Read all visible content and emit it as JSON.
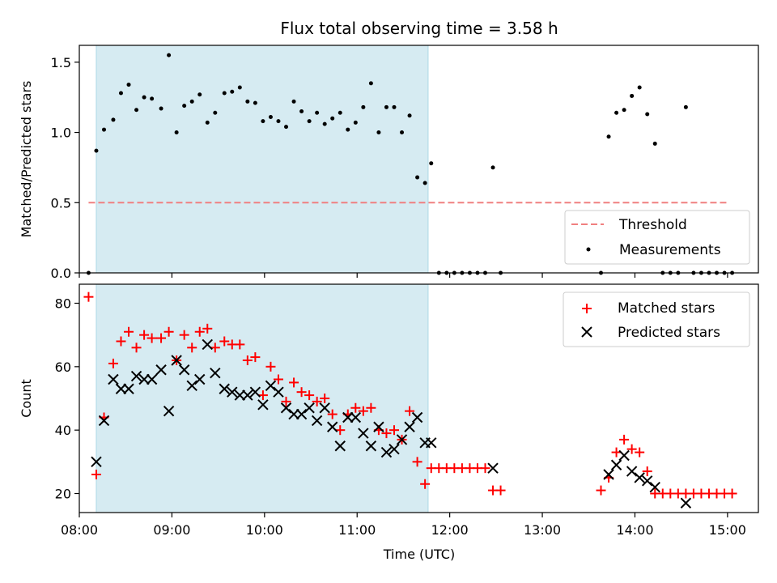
{
  "chart_data": [
    {
      "type": "scatter",
      "title": "Flux total observing time = 3.58 h",
      "xlabel": "",
      "ylabel": "Matched/Predicted stars",
      "xlim": [
        "08:00",
        "15:20"
      ],
      "ylim": [
        0,
        1.62
      ],
      "x_ticks": [
        "08:00",
        "09:00",
        "10:00",
        "11:00",
        "12:00",
        "13:00",
        "14:00",
        "15:00"
      ],
      "y_ticks": [
        "0.0",
        "0.5",
        "1.0",
        "1.5"
      ],
      "shaded_region": {
        "x0": "08:11",
        "x1": "11:46",
        "color": "#add8e6"
      },
      "grid": false,
      "legend_position": "lower-right",
      "threshold": {
        "name": "Threshold",
        "y": 0.5,
        "x0": "08:06",
        "x1": "15:00",
        "color": "#f08080",
        "style": "dashed"
      },
      "series": [
        {
          "name": "Measurements",
          "marker": "dot",
          "color": "#000000",
          "points": [
            [
              "08:06",
              0.0
            ],
            [
              "08:11",
              0.87
            ],
            [
              "08:16",
              1.02
            ],
            [
              "08:22",
              1.09
            ],
            [
              "08:27",
              1.28
            ],
            [
              "08:32",
              1.34
            ],
            [
              "08:37",
              1.16
            ],
            [
              "08:42",
              1.25
            ],
            [
              "08:47",
              1.24
            ],
            [
              "08:53",
              1.17
            ],
            [
              "08:58",
              1.55
            ],
            [
              "09:03",
              1.0
            ],
            [
              "09:08",
              1.19
            ],
            [
              "09:13",
              1.22
            ],
            [
              "09:18",
              1.27
            ],
            [
              "09:23",
              1.07
            ],
            [
              "09:28",
              1.14
            ],
            [
              "09:34",
              1.28
            ],
            [
              "09:39",
              1.29
            ],
            [
              "09:44",
              1.32
            ],
            [
              "09:49",
              1.22
            ],
            [
              "09:54",
              1.21
            ],
            [
              "09:59",
              1.08
            ],
            [
              "10:04",
              1.11
            ],
            [
              "10:09",
              1.08
            ],
            [
              "10:14",
              1.04
            ],
            [
              "10:19",
              1.22
            ],
            [
              "10:24",
              1.15
            ],
            [
              "10:29",
              1.08
            ],
            [
              "10:34",
              1.14
            ],
            [
              "10:39",
              1.06
            ],
            [
              "10:44",
              1.1
            ],
            [
              "10:49",
              1.14
            ],
            [
              "10:54",
              1.02
            ],
            [
              "10:59",
              1.07
            ],
            [
              "11:04",
              1.18
            ],
            [
              "11:09",
              1.35
            ],
            [
              "11:14",
              1.0
            ],
            [
              "11:19",
              1.18
            ],
            [
              "11:24",
              1.18
            ],
            [
              "11:29",
              1.0
            ],
            [
              "11:34",
              1.12
            ],
            [
              "11:39",
              0.68
            ],
            [
              "11:44",
              0.64
            ],
            [
              "11:48",
              0.78
            ],
            [
              "11:53",
              0.0
            ],
            [
              "11:58",
              0.0
            ],
            [
              "12:03",
              0.0
            ],
            [
              "12:08",
              0.0
            ],
            [
              "12:13",
              0.0
            ],
            [
              "12:18",
              0.0
            ],
            [
              "12:23",
              0.0
            ],
            [
              "12:28",
              0.75
            ],
            [
              "12:33",
              0.0
            ],
            [
              "13:38",
              0.0
            ],
            [
              "13:43",
              0.97
            ],
            [
              "13:48",
              1.14
            ],
            [
              "13:53",
              1.16
            ],
            [
              "13:58",
              1.26
            ],
            [
              "14:03",
              1.32
            ],
            [
              "14:08",
              1.13
            ],
            [
              "14:13",
              0.92
            ],
            [
              "14:18",
              0.0
            ],
            [
              "14:23",
              0.0
            ],
            [
              "14:28",
              0.0
            ],
            [
              "14:33",
              1.18
            ],
            [
              "14:38",
              0.0
            ],
            [
              "14:43",
              0.0
            ],
            [
              "14:48",
              0.0
            ],
            [
              "14:53",
              0.0
            ],
            [
              "14:58",
              0.0
            ],
            [
              "15:03",
              0.0
            ]
          ]
        }
      ]
    },
    {
      "type": "scatter",
      "title": "",
      "xlabel": "Time (UTC)",
      "ylabel": "Count",
      "xlim": [
        "08:00",
        "15:20"
      ],
      "ylim": [
        14,
        86
      ],
      "x_ticks": [
        "08:00",
        "09:00",
        "10:00",
        "11:00",
        "12:00",
        "13:00",
        "14:00",
        "15:00"
      ],
      "y_ticks": [
        "20",
        "40",
        "60",
        "80"
      ],
      "shaded_region": {
        "x0": "08:11",
        "x1": "11:46",
        "color": "#add8e6"
      },
      "grid": false,
      "legend_position": "upper-right",
      "series": [
        {
          "name": "Matched stars",
          "marker": "plus",
          "color": "#ff0000",
          "points": [
            [
              "08:06",
              82
            ],
            [
              "08:11",
              26
            ],
            [
              "08:16",
              44
            ],
            [
              "08:22",
              61
            ],
            [
              "08:27",
              68
            ],
            [
              "08:32",
              71
            ],
            [
              "08:37",
              66
            ],
            [
              "08:42",
              70
            ],
            [
              "08:47",
              69
            ],
            [
              "08:53",
              69
            ],
            [
              "08:58",
              71
            ],
            [
              "09:03",
              62
            ],
            [
              "09:08",
              70
            ],
            [
              "09:13",
              66
            ],
            [
              "09:18",
              71
            ],
            [
              "09:23",
              72
            ],
            [
              "09:28",
              66
            ],
            [
              "09:34",
              68
            ],
            [
              "09:39",
              67
            ],
            [
              "09:44",
              67
            ],
            [
              "09:49",
              62
            ],
            [
              "09:54",
              63
            ],
            [
              "09:59",
              51
            ],
            [
              "10:04",
              60
            ],
            [
              "10:09",
              56
            ],
            [
              "10:14",
              49
            ],
            [
              "10:19",
              55
            ],
            [
              "10:24",
              52
            ],
            [
              "10:29",
              51
            ],
            [
              "10:34",
              49
            ],
            [
              "10:39",
              50
            ],
            [
              "10:44",
              45
            ],
            [
              "10:49",
              40
            ],
            [
              "10:54",
              45
            ],
            [
              "10:59",
              47
            ],
            [
              "11:04",
              46
            ],
            [
              "11:09",
              47
            ],
            [
              "11:14",
              40
            ],
            [
              "11:19",
              39
            ],
            [
              "11:24",
              40
            ],
            [
              "11:29",
              37
            ],
            [
              "11:34",
              46
            ],
            [
              "11:39",
              30
            ],
            [
              "11:44",
              23
            ],
            [
              "11:48",
              28
            ],
            [
              "11:53",
              28
            ],
            [
              "11:58",
              28
            ],
            [
              "12:03",
              28
            ],
            [
              "12:08",
              28
            ],
            [
              "12:13",
              28
            ],
            [
              "12:18",
              28
            ],
            [
              "12:23",
              28
            ],
            [
              "12:28",
              21
            ],
            [
              "12:33",
              21
            ],
            [
              "13:38",
              21
            ],
            [
              "13:43",
              25
            ],
            [
              "13:48",
              33
            ],
            [
              "13:53",
              37
            ],
            [
              "13:58",
              34
            ],
            [
              "14:03",
              33
            ],
            [
              "14:08",
              27
            ],
            [
              "14:13",
              20
            ],
            [
              "14:18",
              20
            ],
            [
              "14:23",
              20
            ],
            [
              "14:28",
              20
            ],
            [
              "14:33",
              20
            ],
            [
              "14:38",
              20
            ],
            [
              "14:43",
              20
            ],
            [
              "14:48",
              20
            ],
            [
              "14:53",
              20
            ],
            [
              "14:58",
              20
            ],
            [
              "15:03",
              20
            ]
          ]
        },
        {
          "name": "Predicted stars",
          "marker": "x",
          "color": "#000000",
          "points": [
            [
              "08:11",
              30
            ],
            [
              "08:16",
              43
            ],
            [
              "08:22",
              56
            ],
            [
              "08:27",
              53
            ],
            [
              "08:32",
              53
            ],
            [
              "08:37",
              57
            ],
            [
              "08:42",
              56
            ],
            [
              "08:47",
              56
            ],
            [
              "08:53",
              59
            ],
            [
              "08:58",
              46
            ],
            [
              "09:03",
              62
            ],
            [
              "09:08",
              59
            ],
            [
              "09:13",
              54
            ],
            [
              "09:18",
              56
            ],
            [
              "09:23",
              67
            ],
            [
              "09:28",
              58
            ],
            [
              "09:34",
              53
            ],
            [
              "09:39",
              52
            ],
            [
              "09:44",
              51
            ],
            [
              "09:49",
              51
            ],
            [
              "09:54",
              52
            ],
            [
              "09:59",
              48
            ],
            [
              "10:04",
              54
            ],
            [
              "10:09",
              52
            ],
            [
              "10:14",
              47
            ],
            [
              "10:19",
              45
            ],
            [
              "10:24",
              45
            ],
            [
              "10:29",
              47
            ],
            [
              "10:34",
              43
            ],
            [
              "10:39",
              47
            ],
            [
              "10:44",
              41
            ],
            [
              "10:49",
              35
            ],
            [
              "10:54",
              44
            ],
            [
              "10:59",
              44
            ],
            [
              "11:04",
              39
            ],
            [
              "11:09",
              35
            ],
            [
              "11:14",
              41
            ],
            [
              "11:19",
              33
            ],
            [
              "11:24",
              34
            ],
            [
              "11:29",
              37
            ],
            [
              "11:34",
              41
            ],
            [
              "11:39",
              44
            ],
            [
              "11:44",
              36
            ],
            [
              "11:48",
              36
            ],
            [
              "12:28",
              28
            ],
            [
              "13:43",
              26
            ],
            [
              "13:48",
              29
            ],
            [
              "13:53",
              32
            ],
            [
              "13:58",
              27
            ],
            [
              "14:03",
              25
            ],
            [
              "14:08",
              24
            ],
            [
              "14:13",
              22
            ],
            [
              "14:33",
              17
            ]
          ]
        }
      ]
    }
  ]
}
